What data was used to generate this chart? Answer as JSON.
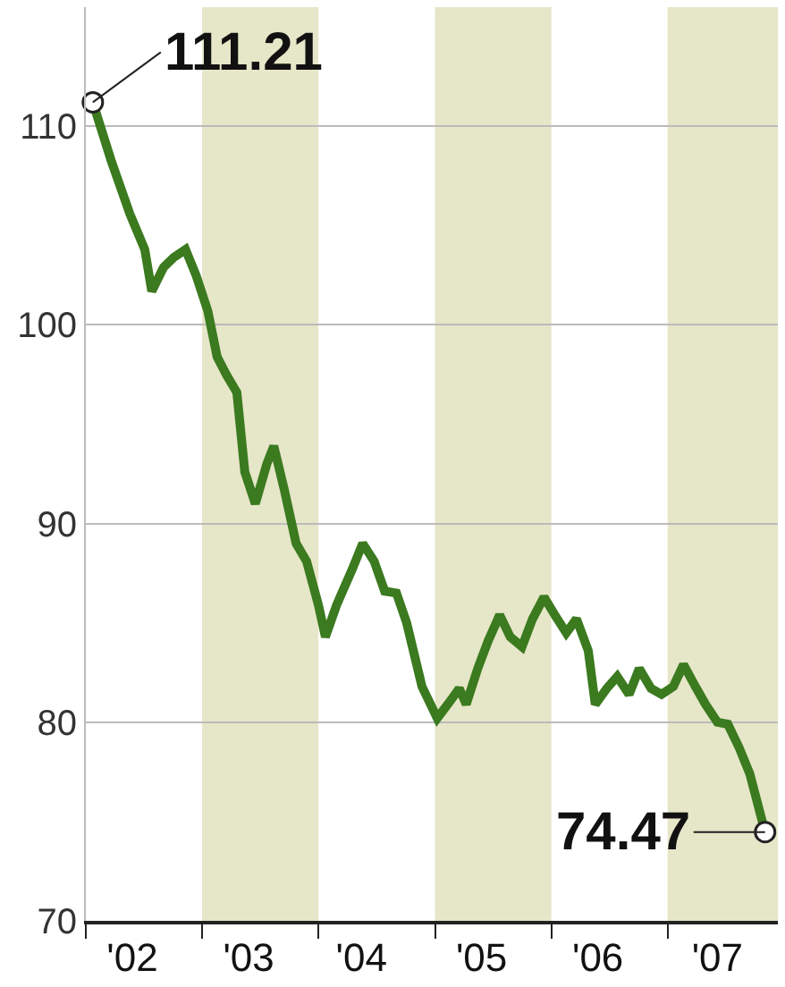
{
  "chart_data": {
    "type": "line",
    "x": [
      "2002-01-23",
      "2002-03-21",
      "2002-05-19",
      "2002-07-05",
      "2002-07-27",
      "2002-09-02",
      "2002-10-04",
      "2002-11-10",
      "2002-12-13",
      "2003-01-19",
      "2003-02-17",
      "2003-03-18",
      "2003-04-20",
      "2003-05-15",
      "2003-06-17",
      "2003-07-23",
      "2003-08-14",
      "2003-09-16",
      "2003-10-23",
      "2003-11-25",
      "2004-01-01",
      "2004-01-23",
      "2004-02-27",
      "2004-04-16",
      "2004-05-19",
      "2004-06-24",
      "2004-07-27",
      "2004-09-02",
      "2004-10-04",
      "2004-11-21",
      "2005-01-08",
      "2005-02-10",
      "2005-03-18",
      "2005-04-09",
      "2005-05-15",
      "2005-06-17",
      "2005-07-23",
      "2005-08-25",
      "2005-10-01",
      "2005-11-03",
      "2005-12-09",
      "2006-01-12",
      "2006-02-17",
      "2006-03-21",
      "2006-04-27",
      "2006-05-19",
      "2006-06-24",
      "2006-07-27",
      "2006-09-02",
      "2006-10-04",
      "2006-11-10",
      "2006-12-13",
      "2007-01-19",
      "2007-02-20",
      "2007-03-29",
      "2007-04-30",
      "2007-06-06",
      "2007-07-09",
      "2007-08-14",
      "2007-09-16",
      "2007-11-03"
    ],
    "series": [
      {
        "color": "#3b7a1f",
        "values": [
          111.21,
          108.3,
          105.6,
          103.8,
          101.7,
          102.9,
          103.4,
          103.8,
          102.5,
          100.7,
          98.4,
          97.5,
          96.6,
          92.6,
          91.0,
          93.0,
          93.9,
          91.7,
          89.0,
          88.1,
          85.9,
          84.3,
          85.9,
          87.7,
          89.0,
          88.1,
          86.6,
          86.5,
          85.0,
          81.8,
          80.2,
          80.9,
          81.7,
          80.9,
          82.7,
          84.1,
          85.4,
          84.3,
          83.8,
          85.2,
          86.3,
          85.4,
          84.5,
          85.2,
          83.6,
          80.9,
          81.7,
          82.3,
          81.4,
          82.7,
          81.7,
          81.4,
          81.8,
          82.9,
          81.8,
          80.9,
          80.0,
          79.9,
          78.7,
          77.4,
          74.47
        ]
      }
    ],
    "xlim": [
      "2002-01-01",
      "2007-12-13"
    ],
    "xticks": [
      {
        "value": "2002-01-01",
        "label": null
      },
      {
        "value": "2002-05-27",
        "label": "'02"
      },
      {
        "value": "2003-01-01",
        "label": null
      },
      {
        "value": "2003-05-27",
        "label": "'03"
      },
      {
        "value": "2004-01-01",
        "label": null
      },
      {
        "value": "2004-05-15",
        "label": "'04"
      },
      {
        "value": "2005-01-01",
        "label": null
      },
      {
        "value": "2005-05-27",
        "label": "'05"
      },
      {
        "value": "2006-01-01",
        "label": null
      },
      {
        "value": "2006-05-27",
        "label": "'06"
      },
      {
        "value": "2007-01-01",
        "label": null
      },
      {
        "value": "2007-06-06",
        "label": "'07"
      }
    ],
    "ylim": [
      70,
      116
    ],
    "yticks": [
      70,
      80,
      90,
      100,
      110
    ],
    "grid": "y",
    "legend": false,
    "marker": "none",
    "line_style": "solid",
    "bands": [
      {
        "axis": "x",
        "from": "2003-01-01",
        "to": "2004-01-01",
        "color": "#e6e6c8"
      },
      {
        "axis": "x",
        "from": "2005-01-01",
        "to": "2006-01-01",
        "color": "#e6e6c8"
      },
      {
        "axis": "x",
        "from": "2007-01-01",
        "to": "2007-12-13",
        "color": "#e6e6c8"
      }
    ],
    "annotations": [
      {
        "text": "111.21",
        "x": "2002-01-23",
        "y": 111.21
      },
      {
        "text": "74.47",
        "x": "2007-11-03",
        "y": 74.47
      }
    ]
  }
}
